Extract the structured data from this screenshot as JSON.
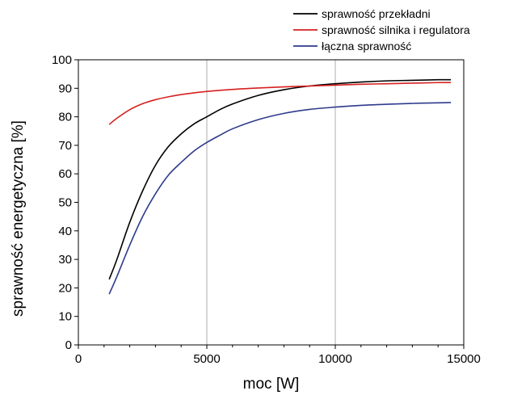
{
  "chart_data": {
    "type": "line",
    "title": "",
    "xlabel": "moc [W]",
    "ylabel": "sprawność energetyczna [%]",
    "xlim": [
      0,
      15000
    ],
    "ylim": [
      0,
      100
    ],
    "xticks": [
      0,
      5000,
      10000,
      15000
    ],
    "yticks": [
      0,
      10,
      20,
      30,
      40,
      50,
      60,
      70,
      80,
      90,
      100
    ],
    "grid": {
      "vertical": [
        5000,
        10000
      ],
      "horizontal": []
    },
    "legend_position": "top-right, outside plot",
    "series": [
      {
        "name": "sprawność przekładni",
        "color": "#000000",
        "x": [
          1200,
          1500,
          2000,
          2500,
          3000,
          3500,
          4000,
          4500,
          5000,
          5500,
          6000,
          7000,
          8000,
          9000,
          10000,
          11000,
          12000,
          13000,
          14000,
          14500
        ],
        "y": [
          23,
          30,
          43,
          54,
          63,
          69.5,
          74,
          77.5,
          80,
          82.5,
          84.5,
          87.5,
          89.5,
          90.8,
          91.6,
          92.2,
          92.6,
          92.8,
          93,
          93
        ]
      },
      {
        "name": "sprawność silnika i regulatora",
        "color": "#d62020",
        "x": [
          1200,
          1500,
          2000,
          2500,
          3000,
          3500,
          4000,
          4500,
          5000,
          6000,
          7000,
          8000,
          9000,
          10000,
          11000,
          12000,
          13000,
          14000,
          14500
        ],
        "y": [
          77.3,
          79.5,
          82.5,
          84.6,
          86,
          87,
          87.8,
          88.4,
          88.9,
          89.6,
          90.1,
          90.5,
          90.8,
          91.1,
          91.4,
          91.6,
          91.8,
          92,
          92
        ]
      },
      {
        "name": "łączna sprawność",
        "color": "#2e3a8c",
        "x": [
          1200,
          1500,
          2000,
          2500,
          3000,
          3500,
          4000,
          4500,
          5000,
          5500,
          6000,
          7000,
          8000,
          9000,
          10000,
          11000,
          12000,
          13000,
          14000,
          14500
        ],
        "y": [
          17.8,
          24,
          35,
          45,
          53,
          59.5,
          64,
          68,
          71,
          73.5,
          75.8,
          79,
          81.2,
          82.6,
          83.4,
          84,
          84.4,
          84.7,
          84.9,
          85
        ]
      }
    ]
  }
}
